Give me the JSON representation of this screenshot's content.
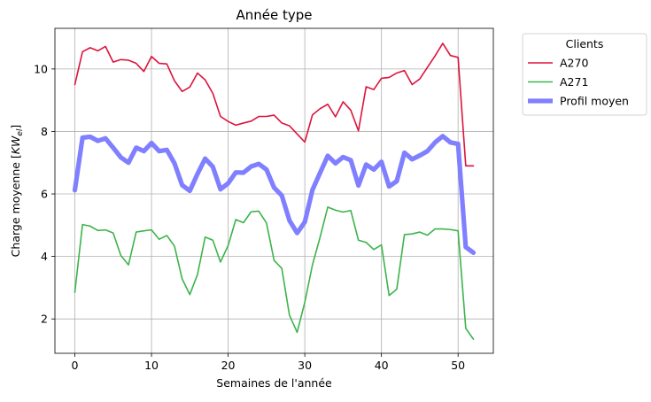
{
  "chart_data": {
    "type": "line",
    "title": "Année type",
    "xlabel": "Semaines de l'année",
    "ylabel": "Charge moyenne",
    "ylabel_unit_base": "KW",
    "ylabel_unit_sub": "el",
    "xlim": [
      -2.6,
      54.6
    ],
    "ylim": [
      0.9,
      11.3
    ],
    "xticks": [
      0,
      10,
      20,
      30,
      40,
      50
    ],
    "yticks": [
      2,
      4,
      6,
      8,
      10
    ],
    "grid": true,
    "legend": {
      "title": "Clients",
      "placement": "outside-top-right"
    },
    "x": [
      0,
      1,
      2,
      3,
      4,
      5,
      6,
      7,
      8,
      9,
      10,
      11,
      12,
      13,
      14,
      15,
      16,
      17,
      18,
      19,
      20,
      21,
      22,
      23,
      24,
      25,
      26,
      27,
      28,
      29,
      30,
      31,
      32,
      33,
      34,
      35,
      36,
      37,
      38,
      39,
      40,
      41,
      42,
      43,
      44,
      45,
      46,
      47,
      48,
      49,
      50,
      51,
      52
    ],
    "series": [
      {
        "name": "A270",
        "color": "#dc143c",
        "width": 1.6,
        "values": [
          9.5,
          10.55,
          10.68,
          10.58,
          10.72,
          10.22,
          10.3,
          10.28,
          10.18,
          9.92,
          10.4,
          10.18,
          10.16,
          9.62,
          9.28,
          9.42,
          9.87,
          9.65,
          9.22,
          8.48,
          8.32,
          8.2,
          8.27,
          8.33,
          8.48,
          8.48,
          8.52,
          8.27,
          8.18,
          7.92,
          7.66,
          8.53,
          8.73,
          8.87,
          8.47,
          8.95,
          8.68,
          8.02,
          9.43,
          9.34,
          9.7,
          9.73,
          9.87,
          9.95,
          9.5,
          9.68,
          10.05,
          10.42,
          10.82,
          10.43,
          10.37,
          6.9,
          6.9
        ]
      },
      {
        "name": "A271",
        "color": "#3cb44b",
        "width": 1.6,
        "values": [
          2.85,
          5.02,
          4.97,
          4.83,
          4.85,
          4.75,
          4.03,
          3.73,
          4.78,
          4.82,
          4.85,
          4.55,
          4.67,
          4.33,
          3.28,
          2.78,
          3.42,
          4.62,
          4.52,
          3.82,
          4.35,
          5.18,
          5.08,
          5.43,
          5.45,
          5.07,
          3.87,
          3.62,
          2.12,
          1.57,
          2.53,
          3.73,
          4.62,
          5.58,
          5.48,
          5.42,
          5.47,
          4.52,
          4.45,
          4.22,
          4.37,
          2.75,
          2.95,
          4.7,
          4.72,
          4.78,
          4.68,
          4.88,
          4.88,
          4.86,
          4.82,
          1.7,
          1.35
        ]
      },
      {
        "name": "Profil moyen",
        "color": "#7f7fff",
        "width": 5.2,
        "values": [
          6.12,
          7.8,
          7.83,
          7.7,
          7.78,
          7.48,
          7.17,
          7.0,
          7.48,
          7.37,
          7.63,
          7.37,
          7.41,
          6.98,
          6.28,
          6.1,
          6.64,
          7.13,
          6.87,
          6.15,
          6.34,
          6.69,
          6.68,
          6.88,
          6.96,
          6.78,
          6.2,
          5.95,
          5.15,
          4.75,
          5.1,
          6.13,
          6.68,
          7.22,
          6.98,
          7.18,
          7.08,
          6.27,
          6.94,
          6.78,
          7.03,
          6.24,
          6.41,
          7.32,
          7.11,
          7.23,
          7.37,
          7.65,
          7.85,
          7.65,
          7.6,
          4.3,
          4.12
        ]
      }
    ]
  }
}
